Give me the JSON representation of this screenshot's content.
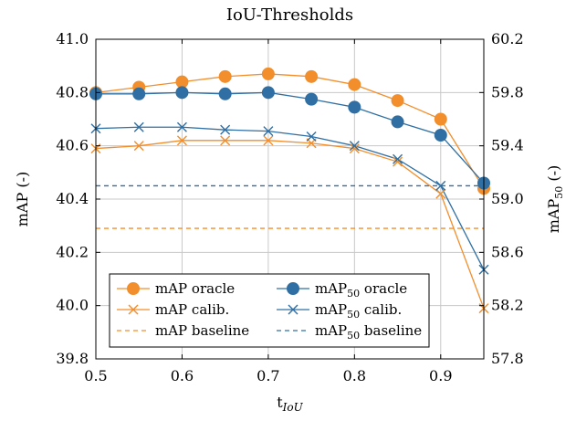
{
  "chart_data": {
    "type": "line",
    "title": "IoU-Thresholds",
    "xlabel": "t",
    "xlabel_sub": "IoU",
    "ylabel_left": "mAP (-)",
    "ylabel_right_main": "mAP",
    "ylabel_right_sub": "50",
    "ylabel_right_tail": " (-)",
    "x": [
      0.5,
      0.55,
      0.6,
      0.65,
      0.7,
      0.75,
      0.8,
      0.85,
      0.9,
      0.95
    ],
    "xlim": [
      0.5,
      0.95
    ],
    "xticks": [
      0.5,
      0.6,
      0.7,
      0.8,
      0.9
    ],
    "xtick_labels": [
      "0.5",
      "0.6",
      "0.7",
      "0.8",
      "0.9"
    ],
    "ylim_left": [
      39.8,
      41.0
    ],
    "yticks_left": [
      39.8,
      40.0,
      40.2,
      40.4,
      40.6,
      40.8,
      41.0
    ],
    "ytick_labels_left": [
      "39.8",
      "40.0",
      "40.2",
      "40.4",
      "40.6",
      "40.8",
      "41.0"
    ],
    "ylim_right": [
      57.8,
      60.2
    ],
    "yticks_right": [
      57.8,
      58.2,
      58.6,
      59.0,
      59.4,
      59.8,
      60.2
    ],
    "ytick_labels_right": [
      "57.8",
      "58.2",
      "58.6",
      "59.0",
      "59.4",
      "59.8",
      "60.2"
    ],
    "grid": true,
    "legend_position": "bottom-left",
    "series": [
      {
        "name": "mAP oracle",
        "legend_main": "mAP",
        "legend_sub": "",
        "legend_tail": " oracle",
        "axis": "left",
        "color": "#f28e2b",
        "marker": "circle",
        "dashed": false,
        "values": [
          40.8,
          40.82,
          40.84,
          40.86,
          40.87,
          40.86,
          40.83,
          40.77,
          40.7,
          40.44
        ]
      },
      {
        "name": "mAP50 oracle",
        "legend_main": "mAP",
        "legend_sub": "50",
        "legend_tail": " oracle",
        "axis": "right",
        "color": "#2f6fa3",
        "marker": "circle",
        "dashed": false,
        "values": [
          59.79,
          59.79,
          59.8,
          59.79,
          59.8,
          59.75,
          59.69,
          59.58,
          59.48,
          59.12
        ]
      },
      {
        "name": "mAP calib.",
        "legend_main": "mAP",
        "legend_sub": "",
        "legend_tail": " calib.",
        "axis": "left",
        "color": "#f28e2b",
        "marker": "cross",
        "dashed": false,
        "values": [
          40.59,
          40.6,
          40.62,
          40.62,
          40.62,
          40.61,
          40.59,
          40.54,
          40.42,
          39.99
        ]
      },
      {
        "name": "mAP50 calib.",
        "legend_main": "mAP",
        "legend_sub": "50",
        "legend_tail": " calib.",
        "axis": "right",
        "color": "#2f6fa3",
        "marker": "cross",
        "dashed": false,
        "values": [
          59.53,
          59.54,
          59.54,
          59.52,
          59.51,
          59.47,
          59.4,
          59.3,
          59.1,
          58.47
        ]
      },
      {
        "name": "mAP baseline",
        "legend_main": "mAP",
        "legend_sub": "",
        "legend_tail": " baseline",
        "axis": "left",
        "color": "#f28e2b",
        "marker": "none",
        "dashed": true,
        "values": [
          40.29,
          40.29,
          40.29,
          40.29,
          40.29,
          40.29,
          40.29,
          40.29,
          40.29,
          40.29
        ]
      },
      {
        "name": "mAP50 baseline",
        "legend_main": "mAP",
        "legend_sub": "50",
        "legend_tail": " baseline",
        "axis": "right",
        "color": "#2f6fa3",
        "marker": "none",
        "dashed": true,
        "values": [
          59.1,
          59.1,
          59.1,
          59.1,
          59.1,
          59.1,
          59.1,
          59.1,
          59.1,
          59.1
        ]
      }
    ]
  }
}
